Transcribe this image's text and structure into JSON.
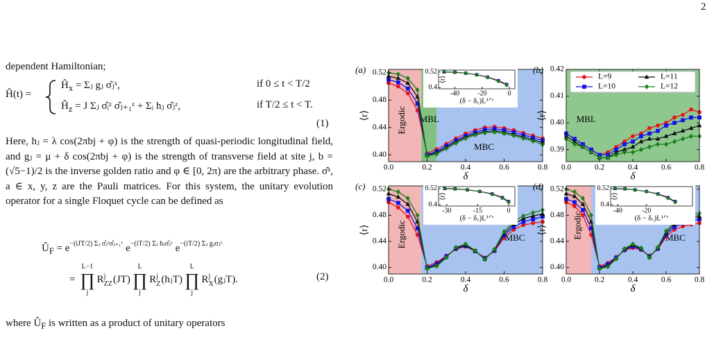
{
  "text": {
    "page_number": "2",
    "line_1": "dependent Hamiltonian;",
    "eq1": {
      "lhs": "Ĥ(t) =",
      "cases": [
        {
          "name": "Ĥ",
          "name_sub": "x",
          "rhs": "= Σⱼ gⱼ σ̂ⱼˣ,",
          "cond": "if 0 ≤ t < T/2"
        },
        {
          "name": "Ĥ",
          "name_sub": "z",
          "rhs": "= J Σⱼ σ̂ᵢᶻ σ̂ⱼ₊₁ᶻ + Σᵢ hⱼ σ̂ⱼᶻ,",
          "cond": "if T/2 ≤ t < T."
        }
      ],
      "number": "(1)"
    },
    "paragraph": "Here, hⱼ = λ cos(2πbj + φ) is the strength of quasi-periodic longitudinal field, and gⱼ = μ + δ cos(2πbj + φ) is the strength of transverse field at site j, b = (√5−1)/2 is the inverse golden ratio and φ ∈ [0, 2π) are the arbitrary phase. σ̂ᵃ, a ∈ x, y, z are the Pauli matrices. For this system, the unitary evolution operator for a single Floquet cycle can be defined as",
    "eq2": {
      "line1": {
        "lhs": "Û",
        "lhs_sub": "F",
        "eq": "=",
        "factors": [
          {
            "base": "e",
            "exp": "−(iJT/2) Σⱼ σ̂ⱼᶻσ̂ⱼ₊₁ᶻ"
          },
          {
            "base": "e",
            "exp": "−(iT/2) Σⱼ hⱼσ̂ⱼᶻ"
          },
          {
            "base": "e",
            "exp": "−(iT/2) Σⱼ gⱼσⱼˣ"
          }
        ]
      },
      "line2": {
        "eq": "=",
        "products": [
          {
            "symbol": "∏",
            "upper": "L−1",
            "lower": "j",
            "term": "R",
            "sup": "j",
            "sub": "ZZ",
            "arg": "(JT)"
          },
          {
            "symbol": "∏",
            "upper": "L",
            "lower": "j",
            "term": "R",
            "sup": "j",
            "sub": "Z",
            "arg": "(hⱼT)"
          },
          {
            "symbol": "∏",
            "upper": "L",
            "lower": "j",
            "term": "R",
            "sup": "j",
            "sub": "X",
            "arg": "(gⱼT)."
          }
        ]
      },
      "number": "(2)"
    },
    "last_line": {
      "before": "where Û",
      "sub": "F",
      "after": " is written as a product of unitary operators"
    }
  },
  "chart_data": [
    {
      "type": "line",
      "label": "(a)",
      "xlabel": "δ",
      "ylabel": "⟨r⟩",
      "x": [
        0,
        0.05,
        0.1,
        0.15,
        0.2,
        0.25,
        0.3,
        0.35,
        0.4,
        0.45,
        0.5,
        0.55,
        0.6,
        0.65,
        0.7,
        0.75,
        0.8
      ],
      "xlim": [
        0,
        0.8
      ],
      "ylim": [
        0.39,
        0.525
      ],
      "xticks": [
        {
          "value": 0,
          "label": "0.0"
        },
        0.2,
        0.4,
        0.6,
        0.8
      ],
      "yticks": [
        {
          "value": 0.4,
          "label": "0.40"
        },
        0.44,
        0.48,
        0.52
      ],
      "regions": [
        {
          "label": "Ergodic",
          "range": [
            0,
            0.17
          ],
          "color": "#f2b6b6"
        },
        {
          "label": "MBL",
          "range": [
            0.17,
            0.25
          ],
          "color": "#82c182"
        },
        {
          "label": "MBC",
          "range": [
            0.25,
            0.8
          ],
          "color": "#a8c3ef"
        }
      ],
      "series": [
        {
          "color": "#e8141c",
          "marker": "o",
          "values": [
            0.505,
            0.5,
            0.49,
            0.465,
            0.402,
            0.408,
            0.416,
            0.424,
            0.431,
            0.436,
            0.44,
            0.441,
            0.439,
            0.436,
            0.432,
            0.428,
            0.424
          ]
        },
        {
          "color": "#1414e8",
          "marker": "s",
          "values": [
            0.51,
            0.506,
            0.497,
            0.475,
            0.4,
            0.405,
            0.413,
            0.421,
            0.428,
            0.433,
            0.437,
            0.438,
            0.436,
            0.433,
            0.429,
            0.425,
            0.421
          ]
        },
        {
          "color": "#111111",
          "marker": "^",
          "values": [
            0.515,
            0.512,
            0.505,
            0.485,
            0.399,
            0.403,
            0.411,
            0.419,
            0.426,
            0.431,
            0.434,
            0.435,
            0.433,
            0.43,
            0.426,
            0.422,
            0.418
          ]
        },
        {
          "color": "#1b7f1b",
          "marker": "D",
          "values": [
            0.52,
            0.518,
            0.512,
            0.495,
            0.398,
            0.401,
            0.409,
            0.417,
            0.424,
            0.429,
            0.432,
            0.433,
            0.431,
            0.428,
            0.424,
            0.42,
            0.415
          ]
        }
      ],
      "inset": {
        "xlabel": "(δ − δ꜀)L¹ᐟᵛ",
        "ylabel": "⟨r⟩",
        "xlim": [
          -52,
          4
        ],
        "ylim": [
          0.39,
          0.535
        ],
        "xticks": [
          -40,
          -20,
          0
        ],
        "yticks": [
          0.4,
          0.52
        ],
        "x": [
          -48,
          -40,
          -32,
          -24,
          -16,
          -8,
          -2
        ],
        "series": [
          {
            "color": "#e8141c",
            "marker": "o",
            "values": [
              0.52,
              0.518,
              0.512,
              0.5,
              0.482,
              0.455,
              0.425
            ]
          },
          {
            "color": "#1414e8",
            "marker": "s",
            "values": [
              0.521,
              0.519,
              0.511,
              0.499,
              0.48,
              0.452,
              0.423
            ]
          },
          {
            "color": "#111111",
            "marker": "^",
            "values": [
              0.519,
              0.517,
              0.51,
              0.498,
              0.479,
              0.45,
              0.42
            ]
          },
          {
            "color": "#1b7f1b",
            "marker": "D",
            "values": [
              0.522,
              0.52,
              0.512,
              0.498,
              0.478,
              0.448,
              0.418
            ]
          }
        ]
      }
    },
    {
      "type": "line",
      "label": "(b)",
      "xlabel": "δ",
      "ylabel": "⟨r⟩",
      "x": [
        0,
        0.05,
        0.1,
        0.15,
        0.2,
        0.25,
        0.3,
        0.35,
        0.4,
        0.45,
        0.5,
        0.55,
        0.6,
        0.65,
        0.7,
        0.75,
        0.8
      ],
      "xlim": [
        0,
        0.8
      ],
      "ylim": [
        0.3855,
        0.42
      ],
      "xticks": [
        {
          "value": 0,
          "label": "0.0"
        },
        0.2,
        0.4,
        0.6,
        0.8
      ],
      "yticks": [
        0.39,
        {
          "value": 0.4,
          "label": "0.40"
        },
        0.41,
        0.42
      ],
      "regions": [
        {
          "label": "MBL",
          "range": [
            0,
            0.8
          ],
          "color": "#8fc78f"
        }
      ],
      "legend": "upper center",
      "series": [
        {
          "name": "L=9",
          "color": "#e8141c",
          "marker": "o",
          "values": [
            0.396,
            0.394,
            0.392,
            0.39,
            0.388,
            0.389,
            0.391,
            0.393,
            0.395,
            0.396,
            0.398,
            0.399,
            0.4,
            0.402,
            0.403,
            0.405,
            0.404
          ]
        },
        {
          "name": "L=10",
          "color": "#1414e8",
          "marker": "s",
          "values": [
            0.396,
            0.394,
            0.392,
            0.39,
            0.388,
            0.388,
            0.39,
            0.392,
            0.393,
            0.395,
            0.396,
            0.397,
            0.399,
            0.4,
            0.401,
            0.402,
            0.402
          ]
        },
        {
          "name": "L=11",
          "color": "#111111",
          "marker": "^",
          "values": [
            0.395,
            0.393,
            0.391,
            0.389,
            0.387,
            0.387,
            0.389,
            0.39,
            0.391,
            0.393,
            0.394,
            0.394,
            0.395,
            0.396,
            0.397,
            0.398,
            0.399
          ]
        },
        {
          "name": "L=12",
          "color": "#1b7f1b",
          "marker": "D",
          "values": [
            0.394,
            0.392,
            0.391,
            0.389,
            0.387,
            0.387,
            0.388,
            0.389,
            0.389,
            0.39,
            0.391,
            0.392,
            0.392,
            0.393,
            0.394,
            0.395,
            0.395
          ]
        }
      ]
    },
    {
      "type": "line",
      "label": "(c)",
      "xlabel": "δ",
      "ylabel": "⟨r⟩",
      "x": [
        0,
        0.05,
        0.1,
        0.15,
        0.2,
        0.25,
        0.3,
        0.35,
        0.4,
        0.45,
        0.5,
        0.55,
        0.6,
        0.65,
        0.7,
        0.75,
        0.8
      ],
      "xlim": [
        0,
        0.8
      ],
      "ylim": [
        0.39,
        0.525
      ],
      "xticks": [
        {
          "value": 0,
          "label": "0.0"
        },
        0.2,
        0.4,
        0.6,
        0.8
      ],
      "yticks": [
        {
          "value": 0.4,
          "label": "0.40"
        },
        0.44,
        0.48,
        0.52
      ],
      "regions": [
        {
          "label": "Ergodic",
          "range": [
            0,
            0.17
          ],
          "color": "#f2b6b6"
        },
        {
          "label": "MBC",
          "range": [
            0.17,
            0.8
          ],
          "color": "#a8c3ef"
        }
      ],
      "series": [
        {
          "color": "#e8141c",
          "marker": "o",
          "values": [
            0.5,
            0.492,
            0.478,
            0.45,
            0.402,
            0.408,
            0.418,
            0.428,
            0.432,
            0.425,
            0.415,
            0.425,
            0.445,
            0.458,
            0.465,
            0.468,
            0.47
          ]
        },
        {
          "color": "#1414e8",
          "marker": "s",
          "values": [
            0.505,
            0.499,
            0.487,
            0.46,
            0.4,
            0.406,
            0.417,
            0.429,
            0.433,
            0.425,
            0.414,
            0.426,
            0.449,
            0.462,
            0.47,
            0.474,
            0.478
          ]
        },
        {
          "color": "#111111",
          "marker": "^",
          "values": [
            0.513,
            0.508,
            0.497,
            0.47,
            0.399,
            0.404,
            0.416,
            0.43,
            0.434,
            0.425,
            0.413,
            0.427,
            0.452,
            0.466,
            0.475,
            0.479,
            0.482
          ]
        },
        {
          "color": "#1b7f1b",
          "marker": "D",
          "values": [
            0.52,
            0.516,
            0.506,
            0.48,
            0.398,
            0.402,
            0.415,
            0.431,
            0.436,
            0.426,
            0.412,
            0.428,
            0.455,
            0.47,
            0.479,
            0.484,
            0.488
          ]
        }
      ],
      "inset": {
        "xlabel": "(δ − δ꜀)L¹ᐟᵛ",
        "ylabel": "⟨r⟩",
        "xlim": [
          -34,
          3
        ],
        "ylim": [
          0.39,
          0.535
        ],
        "xticks": [
          -30,
          -15,
          0
        ],
        "yticks": [
          0.4,
          0.52
        ],
        "x": [
          -31,
          -26,
          -20,
          -14,
          -8,
          -3,
          0
        ],
        "series": [
          {
            "color": "#e8141c",
            "marker": "o",
            "values": [
              0.52,
              0.518,
              0.512,
              0.5,
              0.482,
              0.455,
              0.425
            ]
          },
          {
            "color": "#1414e8",
            "marker": "s",
            "values": [
              0.521,
              0.519,
              0.511,
              0.499,
              0.48,
              0.452,
              0.423
            ]
          },
          {
            "color": "#111111",
            "marker": "^",
            "values": [
              0.519,
              0.517,
              0.51,
              0.498,
              0.479,
              0.45,
              0.42
            ]
          },
          {
            "color": "#1b7f1b",
            "marker": "D",
            "values": [
              0.522,
              0.52,
              0.512,
              0.498,
              0.478,
              0.448,
              0.418
            ]
          }
        ]
      }
    },
    {
      "type": "line",
      "label": "(d)",
      "xlabel": "δ",
      "ylabel": "⟨r⟩",
      "x": [
        0,
        0.05,
        0.1,
        0.15,
        0.2,
        0.25,
        0.3,
        0.35,
        0.4,
        0.45,
        0.5,
        0.55,
        0.6,
        0.65,
        0.7,
        0.75,
        0.8
      ],
      "xlim": [
        0,
        0.8
      ],
      "ylim": [
        0.39,
        0.525
      ],
      "xticks": [
        {
          "value": 0,
          "label": "0.0"
        },
        0.2,
        0.4,
        0.6,
        0.8
      ],
      "yticks": [
        {
          "value": 0.4,
          "label": "0.40"
        },
        0.44,
        0.48,
        0.52
      ],
      "regions": [
        {
          "label": "Ergodic",
          "range": [
            0,
            0.15
          ],
          "color": "#f2b6b6"
        },
        {
          "label": "MBC",
          "range": [
            0.15,
            0.8
          ],
          "color": "#a8c3ef"
        }
      ],
      "series": [
        {
          "color": "#e8141c",
          "marker": "o",
          "values": [
            0.5,
            0.494,
            0.48,
            0.45,
            0.402,
            0.407,
            0.416,
            0.426,
            0.43,
            0.427,
            0.418,
            0.428,
            0.447,
            0.458,
            0.463,
            0.466,
            0.468
          ]
        },
        {
          "color": "#1414e8",
          "marker": "s",
          "values": [
            0.505,
            0.5,
            0.488,
            0.46,
            0.4,
            0.405,
            0.415,
            0.427,
            0.432,
            0.428,
            0.417,
            0.429,
            0.45,
            0.462,
            0.468,
            0.471,
            0.474
          ]
        },
        {
          "color": "#111111",
          "marker": "^",
          "values": [
            0.513,
            0.509,
            0.497,
            0.47,
            0.399,
            0.403,
            0.414,
            0.428,
            0.434,
            0.429,
            0.416,
            0.43,
            0.453,
            0.466,
            0.472,
            0.476,
            0.478
          ]
        },
        {
          "color": "#1b7f1b",
          "marker": "D",
          "values": [
            0.52,
            0.516,
            0.506,
            0.48,
            0.398,
            0.401,
            0.413,
            0.429,
            0.436,
            0.43,
            0.415,
            0.431,
            0.456,
            0.469,
            0.477,
            0.481,
            0.483
          ]
        }
      ],
      "inset": {
        "xlabel": "(δ − δ꜀)L¹ᐟᵛ",
        "ylabel": "⟨r⟩",
        "xlim": [
          -45,
          12
        ],
        "ylim": [
          0.39,
          0.535
        ],
        "xticks": [
          -40,
          -20
        ],
        "yticks": [
          0.4,
          0.52
        ],
        "x": [
          -42,
          -35,
          -28,
          -20,
          -12,
          -5,
          0
        ],
        "series": [
          {
            "color": "#e8141c",
            "marker": "o",
            "values": [
              0.52,
              0.518,
              0.512,
              0.5,
              0.482,
              0.455,
              0.425
            ]
          },
          {
            "color": "#1414e8",
            "marker": "s",
            "values": [
              0.521,
              0.519,
              0.511,
              0.499,
              0.48,
              0.452,
              0.423
            ]
          },
          {
            "color": "#111111",
            "marker": "^",
            "values": [
              0.519,
              0.517,
              0.51,
              0.498,
              0.479,
              0.45,
              0.42
            ]
          },
          {
            "color": "#1b7f1b",
            "marker": "D",
            "values": [
              0.522,
              0.52,
              0.512,
              0.498,
              0.478,
              0.448,
              0.418
            ]
          }
        ]
      }
    }
  ]
}
